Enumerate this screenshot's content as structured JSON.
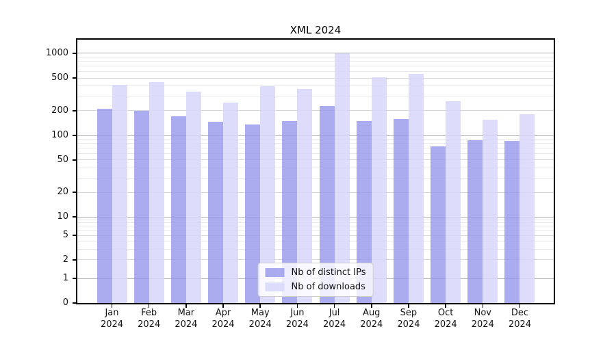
{
  "chart_data": {
    "type": "bar",
    "title": "XML 2024",
    "xlabel": "",
    "ylabel": "",
    "year": "2024",
    "categories": [
      "Jan",
      "Feb",
      "Mar",
      "Apr",
      "May",
      "Jun",
      "Jul",
      "Aug",
      "Sep",
      "Oct",
      "Nov",
      "Dec"
    ],
    "series": [
      {
        "name": "Nb of distinct IPs",
        "color": "#9696eb",
        "opacity": 0.8,
        "values": [
          212,
          200,
          170,
          148,
          136,
          151,
          228,
          149,
          160,
          73,
          87,
          85
        ]
      },
      {
        "name": "Nb of downloads",
        "color": "#d7d7fa",
        "opacity": 0.85,
        "values": [
          415,
          445,
          340,
          250,
          395,
          372,
          1000,
          510,
          560,
          262,
          156,
          182
        ]
      }
    ],
    "y_ticks": [
      0,
      1,
      2,
      5,
      10,
      20,
      50,
      100,
      200,
      500,
      1000
    ],
    "y_scale": "symlog",
    "ylim": [
      0,
      1500
    ],
    "grid": true,
    "legend_position": "lower center",
    "colors": {
      "major_grid": "#b0b0b0",
      "mid_grid": "#d8d8d8",
      "minor_grid": "#e8e8e8",
      "axis": "#000000",
      "text": "#111111"
    }
  }
}
